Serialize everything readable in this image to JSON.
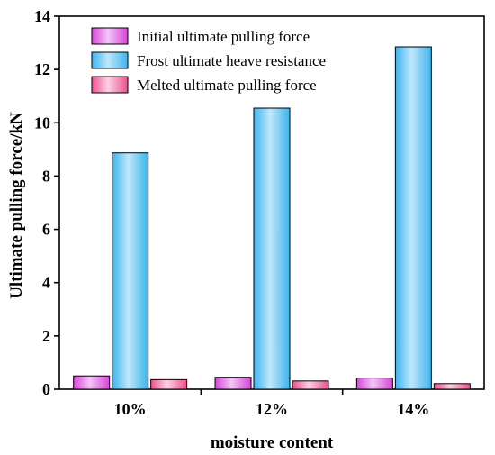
{
  "chart_data": {
    "type": "bar",
    "categories": [
      "10%",
      "12%",
      "14%"
    ],
    "series": [
      {
        "name": "Initial ultimate pulling force",
        "values": [
          0.5,
          0.45,
          0.42
        ],
        "color_top": "#f3c6f6",
        "color_bottom": "#d645d8"
      },
      {
        "name": "Frost ultimate heave resistance",
        "values": [
          8.87,
          10.55,
          12.85
        ],
        "color_top": "#bfe7fb",
        "color_bottom": "#3db4ee"
      },
      {
        "name": "Melted ultimate pulling force",
        "values": [
          0.36,
          0.31,
          0.21
        ],
        "color_top": "#fbd2e3",
        "color_bottom": "#ec4f8f"
      }
    ],
    "xlabel": "moisture content",
    "ylabel": "Ultimate pulling force/kN",
    "ylim": [
      0,
      14
    ],
    "yticks": [
      "0",
      "2",
      "4",
      "6",
      "8",
      "10",
      "12",
      "14"
    ],
    "grid": false,
    "legend_position": "top-left"
  }
}
